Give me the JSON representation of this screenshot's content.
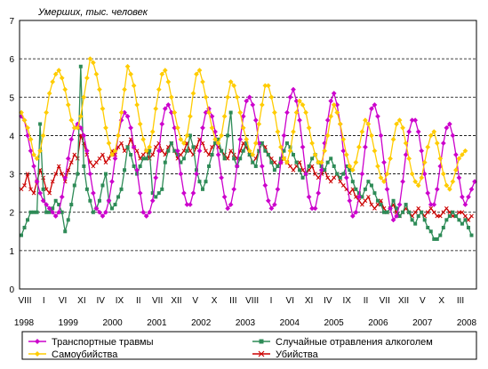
{
  "chart_data": {
    "type": "line",
    "ylabel": "Умерших, тыс. человек",
    "ylim": [
      0,
      7
    ],
    "yticks": [
      "0",
      "1",
      "2",
      "3",
      "4",
      "5",
      "6",
      "7"
    ],
    "grid": "horizontal dashed",
    "month_tick_labels": [
      "VIII",
      "I",
      "VI",
      "XI",
      "IV",
      "IX",
      "II",
      "VII",
      "XII",
      "V",
      "X",
      "III",
      "VIII",
      "I",
      "VI",
      "XI",
      "IV",
      "IX",
      "II",
      "VII",
      "XII",
      "V",
      "X",
      "III"
    ],
    "year_labels": [
      "1998",
      "1999",
      "2000",
      "2001",
      "2002",
      "2003",
      "2004",
      "2005",
      "2006",
      "2007",
      "2008"
    ],
    "colors": {
      "transport": "#cc00cc",
      "alcohol": "#2e8b57",
      "suicide": "#ffcc00",
      "murder": "#cc0000"
    },
    "series": [
      {
        "key": "transport",
        "name": "Транспортные травмы",
        "marker": "diamond",
        "values": [
          4.5,
          4.4,
          4.0,
          3.6,
          3.2,
          2.8,
          2.5,
          2.3,
          2.2,
          2.1,
          2.0,
          1.9,
          2.0,
          2.4,
          2.9,
          3.4,
          3.9,
          4.2,
          4.3,
          4.2,
          4.0,
          3.6,
          3.0,
          2.5,
          2.1,
          2.0,
          1.9,
          2.0,
          2.3,
          2.8,
          3.4,
          4.0,
          4.4,
          4.6,
          4.5,
          4.2,
          3.7,
          3.1,
          2.5,
          2.0,
          1.9,
          2.0,
          2.3,
          2.9,
          3.6,
          4.3,
          4.7,
          4.8,
          4.6,
          4.2,
          3.6,
          3.0,
          2.5,
          2.2,
          2.2,
          2.5,
          3.0,
          3.6,
          4.2,
          4.6,
          4.7,
          4.5,
          4.1,
          3.5,
          2.9,
          2.4,
          2.1,
          2.2,
          2.6,
          3.2,
          3.9,
          4.5,
          4.9,
          5.0,
          4.8,
          4.4,
          3.8,
          3.2,
          2.7,
          2.3,
          2.1,
          2.2,
          2.6,
          3.3,
          4.0,
          4.6,
          5.0,
          5.2,
          4.9,
          4.4,
          3.7,
          3.0,
          2.4,
          2.1,
          2.1,
          2.5,
          3.1,
          3.8,
          4.4,
          4.9,
          5.1,
          4.8,
          4.3,
          3.6,
          2.9,
          2.3,
          1.9,
          2.0,
          2.4,
          3.0,
          3.7,
          4.3,
          4.7,
          4.8,
          4.5,
          4.0,
          3.3,
          2.6,
          2.1,
          1.8,
          1.9,
          2.2,
          2.8,
          3.5,
          4.1,
          4.4,
          4.4,
          4.1,
          3.6,
          3.0,
          2.5,
          2.2,
          2.2,
          2.6,
          3.2,
          3.8,
          4.2,
          4.3,
          4.0,
          3.5,
          2.9,
          2.4,
          2.2,
          2.4,
          2.6,
          2.8
        ]
      },
      {
        "key": "alcohol",
        "name": "Случайные отравления алкоголем",
        "marker": "square",
        "values": [
          1.4,
          1.6,
          1.8,
          2.0,
          2.0,
          2.0,
          4.3,
          2.6,
          2.0,
          2.0,
          2.1,
          2.3,
          2.2,
          2.0,
          1.5,
          1.8,
          2.2,
          2.7,
          3.0,
          5.8,
          3.2,
          2.6,
          2.3,
          2.0,
          2.1,
          2.3,
          2.7,
          3.0,
          2.3,
          2.1,
          2.2,
          2.4,
          2.6,
          3.1,
          3.7,
          3.5,
          3.2,
          3.0,
          3.2,
          3.4,
          3.4,
          3.6,
          2.5,
          2.4,
          2.5,
          2.6,
          3.3,
          3.6,
          3.8,
          3.6,
          3.5,
          3.3,
          3.4,
          3.6,
          4.0,
          3.7,
          3.1,
          2.8,
          2.6,
          2.8,
          3.2,
          3.5,
          3.8,
          3.9,
          3.6,
          3.4,
          4.0,
          4.6,
          3.4,
          3.2,
          3.4,
          3.6,
          3.8,
          3.5,
          3.3,
          3.2,
          3.6,
          3.8,
          3.6,
          3.5,
          3.3,
          3.1,
          3.2,
          3.4,
          3.6,
          3.8,
          3.7,
          3.5,
          3.3,
          3.1,
          2.9,
          3.0,
          3.2,
          3.4,
          3.5,
          3.3,
          3.2,
          3.1,
          3.3,
          3.4,
          3.2,
          3.0,
          2.9,
          3.0,
          3.2,
          3.1,
          2.8,
          2.6,
          2.5,
          2.4,
          2.6,
          2.8,
          2.7,
          2.5,
          2.3,
          2.2,
          2.0,
          2.0,
          2.1,
          2.3,
          2.1,
          1.9,
          2.0,
          2.2,
          2.0,
          1.8,
          1.7,
          1.9,
          2.0,
          1.8,
          1.6,
          1.5,
          1.3,
          1.3,
          1.4,
          1.6,
          1.8,
          1.9,
          2.0,
          1.9,
          1.8,
          1.7,
          1.8,
          1.6,
          1.4
        ]
      },
      {
        "key": "suicide",
        "name": "Самоубийства",
        "marker": "diamond",
        "values": [
          4.6,
          4.4,
          4.2,
          3.9,
          3.5,
          3.4,
          3.6,
          4.0,
          4.6,
          5.1,
          5.4,
          5.6,
          5.7,
          5.5,
          5.2,
          4.8,
          4.4,
          4.2,
          4.2,
          4.5,
          5.0,
          5.5,
          6.0,
          5.9,
          5.6,
          5.2,
          4.7,
          4.2,
          3.8,
          3.5,
          3.6,
          4.0,
          4.6,
          5.2,
          5.8,
          5.6,
          5.3,
          4.8,
          4.3,
          3.9,
          3.6,
          3.7,
          4.1,
          4.7,
          5.2,
          5.6,
          5.7,
          5.4,
          5.0,
          4.6,
          4.2,
          3.9,
          3.8,
          4.0,
          4.5,
          5.1,
          5.6,
          5.7,
          5.4,
          5.0,
          4.6,
          4.2,
          3.9,
          3.8,
          4.0,
          4.5,
          5.0,
          5.4,
          5.3,
          5.0,
          4.6,
          4.2,
          3.9,
          3.6,
          3.5,
          3.8,
          4.3,
          4.8,
          5.3,
          5.3,
          5.0,
          4.6,
          4.1,
          3.7,
          3.4,
          3.3,
          3.6,
          4.1,
          4.6,
          4.9,
          4.8,
          4.6,
          4.2,
          3.8,
          3.5,
          3.3,
          3.3,
          3.6,
          4.0,
          4.5,
          4.8,
          4.6,
          4.3,
          3.9,
          3.5,
          3.2,
          3.1,
          3.3,
          3.7,
          4.1,
          4.4,
          4.3,
          4.0,
          3.6,
          3.2,
          2.9,
          2.8,
          3.0,
          3.4,
          3.9,
          4.3,
          4.4,
          4.2,
          3.8,
          3.4,
          3.0,
          2.8,
          2.7,
          2.9,
          3.3,
          3.7,
          4.0,
          4.1,
          3.8,
          3.4,
          3.0,
          2.7,
          2.6,
          2.8,
          3.1,
          3.4,
          3.5,
          3.6
        ]
      },
      {
        "key": "murder",
        "name": "Убийства",
        "marker": "x",
        "values": [
          2.6,
          2.7,
          3.0,
          2.6,
          2.5,
          2.8,
          3.1,
          2.9,
          2.6,
          2.5,
          2.8,
          3.0,
          3.2,
          3.0,
          2.8,
          3.1,
          3.3,
          3.5,
          3.4,
          4.0,
          3.8,
          3.5,
          3.3,
          3.2,
          3.3,
          3.4,
          3.5,
          3.3,
          3.4,
          3.6,
          3.5,
          3.7,
          3.8,
          3.6,
          3.7,
          3.9,
          3.7,
          3.6,
          3.4,
          3.5,
          3.6,
          3.4,
          3.5,
          3.7,
          3.8,
          3.6,
          3.5,
          3.7,
          3.8,
          3.6,
          3.4,
          3.5,
          3.6,
          3.8,
          3.6,
          3.5,
          3.7,
          3.9,
          3.8,
          3.6,
          3.5,
          3.7,
          3.8,
          3.7,
          3.6,
          3.5,
          3.4,
          3.6,
          3.5,
          3.4,
          3.6,
          3.8,
          3.7,
          3.5,
          3.3,
          3.4,
          3.6,
          3.8,
          3.7,
          3.5,
          3.4,
          3.3,
          3.2,
          3.3,
          3.4,
          3.3,
          3.2,
          3.1,
          3.2,
          3.3,
          3.1,
          3.0,
          3.1,
          3.2,
          3.0,
          2.9,
          3.0,
          3.1,
          2.9,
          2.8,
          2.9,
          3.0,
          2.8,
          2.7,
          2.6,
          2.5,
          2.6,
          2.4,
          2.3,
          2.2,
          2.3,
          2.4,
          2.2,
          2.1,
          2.2,
          2.3,
          2.1,
          2.0,
          2.1,
          2.2,
          2.0,
          1.9,
          2.0,
          2.1,
          2.0,
          1.9,
          2.0,
          2.1,
          2.0,
          1.9,
          2.0,
          2.1,
          2.0,
          1.9,
          1.9,
          2.0,
          2.1,
          2.0,
          1.9,
          1.9,
          2.0,
          2.0,
          1.9,
          1.8,
          1.9
        ]
      }
    ]
  }
}
